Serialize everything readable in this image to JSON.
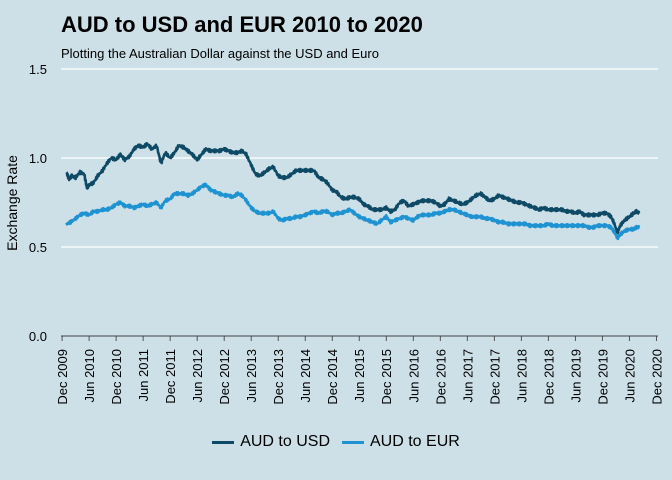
{
  "colors": {
    "background": "#cde0e8",
    "grid": "#ffffff",
    "usd": "#0e4965",
    "eur": "#1f93d1"
  },
  "chart_data": {
    "type": "line",
    "title": "AUD to USD and EUR 2010 to 2020",
    "subtitle": "Plotting the Australian Dollar against the USD and Euro",
    "xlabel": "",
    "ylabel": "Exchange Rate",
    "xlim": [
      2009.9,
      2020.95
    ],
    "ylim": [
      0,
      1.5
    ],
    "y_ticks": [
      {
        "value": 0.0,
        "label": "0.0"
      },
      {
        "value": 0.5,
        "label": "0.5"
      },
      {
        "value": 1.0,
        "label": "1.0"
      },
      {
        "value": 1.5,
        "label": "1.5"
      }
    ],
    "x_ticks": [
      {
        "value": 2009.92,
        "label": "Dec 2009"
      },
      {
        "value": 2010.42,
        "label": "Jun 2010"
      },
      {
        "value": 2010.92,
        "label": "Dec 2010"
      },
      {
        "value": 2011.42,
        "label": "Jun 2011"
      },
      {
        "value": 2011.92,
        "label": "Dec 2011"
      },
      {
        "value": 2012.42,
        "label": "Jun 2012"
      },
      {
        "value": 2012.92,
        "label": "Dec 2012"
      },
      {
        "value": 2013.42,
        "label": "Jun 2013"
      },
      {
        "value": 2013.92,
        "label": "Dec 2013"
      },
      {
        "value": 2014.42,
        "label": "Jun 2014"
      },
      {
        "value": 2014.92,
        "label": "Dec 2014"
      },
      {
        "value": 2015.42,
        "label": "Jun 2015"
      },
      {
        "value": 2015.92,
        "label": "Dec 2015"
      },
      {
        "value": 2016.42,
        "label": "Jun 2016"
      },
      {
        "value": 2016.92,
        "label": "Dec 2016"
      },
      {
        "value": 2017.42,
        "label": "Jun 2017"
      },
      {
        "value": 2017.92,
        "label": "Dec 2017"
      },
      {
        "value": 2018.42,
        "label": "Jun 2018"
      },
      {
        "value": 2018.92,
        "label": "Dec 2018"
      },
      {
        "value": 2019.42,
        "label": "Jun 2019"
      },
      {
        "value": 2019.92,
        "label": "Dec 2019"
      },
      {
        "value": 2020.42,
        "label": "Jun 2020"
      },
      {
        "value": 2020.92,
        "label": "Dec 2020"
      }
    ],
    "legend": {
      "position": "bottom"
    },
    "series": [
      {
        "name": "AUD to USD",
        "color": "#0e4965",
        "points": [
          [
            2010.0,
            0.92
          ],
          [
            2010.05,
            0.88
          ],
          [
            2010.1,
            0.9
          ],
          [
            2010.17,
            0.89
          ],
          [
            2010.25,
            0.92
          ],
          [
            2010.33,
            0.91
          ],
          [
            2010.38,
            0.83
          ],
          [
            2010.42,
            0.85
          ],
          [
            2010.5,
            0.86
          ],
          [
            2010.58,
            0.9
          ],
          [
            2010.67,
            0.93
          ],
          [
            2010.75,
            0.97
          ],
          [
            2010.83,
            1.0
          ],
          [
            2010.92,
            0.99
          ],
          [
            2011.0,
            1.02
          ],
          [
            2011.08,
            0.99
          ],
          [
            2011.17,
            1.01
          ],
          [
            2011.25,
            1.05
          ],
          [
            2011.33,
            1.07
          ],
          [
            2011.42,
            1.06
          ],
          [
            2011.5,
            1.08
          ],
          [
            2011.58,
            1.05
          ],
          [
            2011.67,
            1.07
          ],
          [
            2011.75,
            0.97
          ],
          [
            2011.83,
            1.03
          ],
          [
            2011.92,
            1.0
          ],
          [
            2012.0,
            1.03
          ],
          [
            2012.08,
            1.07
          ],
          [
            2012.17,
            1.06
          ],
          [
            2012.25,
            1.04
          ],
          [
            2012.33,
            1.02
          ],
          [
            2012.42,
            0.99
          ],
          [
            2012.5,
            1.02
          ],
          [
            2012.58,
            1.05
          ],
          [
            2012.67,
            1.04
          ],
          [
            2012.75,
            1.04
          ],
          [
            2012.83,
            1.04
          ],
          [
            2012.92,
            1.05
          ],
          [
            2013.0,
            1.04
          ],
          [
            2013.08,
            1.03
          ],
          [
            2013.17,
            1.03
          ],
          [
            2013.25,
            1.04
          ],
          [
            2013.33,
            1.02
          ],
          [
            2013.42,
            0.96
          ],
          [
            2013.5,
            0.91
          ],
          [
            2013.58,
            0.9
          ],
          [
            2013.67,
            0.92
          ],
          [
            2013.75,
            0.94
          ],
          [
            2013.83,
            0.95
          ],
          [
            2013.92,
            0.9
          ],
          [
            2014.0,
            0.89
          ],
          [
            2014.08,
            0.89
          ],
          [
            2014.17,
            0.91
          ],
          [
            2014.25,
            0.93
          ],
          [
            2014.33,
            0.93
          ],
          [
            2014.42,
            0.93
          ],
          [
            2014.5,
            0.93
          ],
          [
            2014.58,
            0.93
          ],
          [
            2014.67,
            0.89
          ],
          [
            2014.75,
            0.88
          ],
          [
            2014.83,
            0.86
          ],
          [
            2014.92,
            0.82
          ],
          [
            2015.0,
            0.81
          ],
          [
            2015.08,
            0.78
          ],
          [
            2015.17,
            0.77
          ],
          [
            2015.25,
            0.78
          ],
          [
            2015.33,
            0.78
          ],
          [
            2015.42,
            0.77
          ],
          [
            2015.5,
            0.74
          ],
          [
            2015.58,
            0.73
          ],
          [
            2015.67,
            0.71
          ],
          [
            2015.75,
            0.71
          ],
          [
            2015.83,
            0.71
          ],
          [
            2015.92,
            0.72
          ],
          [
            2016.0,
            0.7
          ],
          [
            2016.08,
            0.71
          ],
          [
            2016.17,
            0.75
          ],
          [
            2016.25,
            0.76
          ],
          [
            2016.33,
            0.73
          ],
          [
            2016.42,
            0.74
          ],
          [
            2016.5,
            0.75
          ],
          [
            2016.58,
            0.76
          ],
          [
            2016.67,
            0.76
          ],
          [
            2016.75,
            0.76
          ],
          [
            2016.83,
            0.75
          ],
          [
            2016.92,
            0.73
          ],
          [
            2017.0,
            0.74
          ],
          [
            2017.08,
            0.77
          ],
          [
            2017.17,
            0.76
          ],
          [
            2017.25,
            0.75
          ],
          [
            2017.33,
            0.74
          ],
          [
            2017.42,
            0.75
          ],
          [
            2017.5,
            0.77
          ],
          [
            2017.58,
            0.79
          ],
          [
            2017.67,
            0.8
          ],
          [
            2017.75,
            0.78
          ],
          [
            2017.83,
            0.76
          ],
          [
            2017.92,
            0.77
          ],
          [
            2018.0,
            0.79
          ],
          [
            2018.08,
            0.78
          ],
          [
            2018.17,
            0.77
          ],
          [
            2018.25,
            0.76
          ],
          [
            2018.33,
            0.75
          ],
          [
            2018.42,
            0.75
          ],
          [
            2018.5,
            0.74
          ],
          [
            2018.58,
            0.73
          ],
          [
            2018.67,
            0.72
          ],
          [
            2018.75,
            0.71
          ],
          [
            2018.83,
            0.72
          ],
          [
            2018.92,
            0.71
          ],
          [
            2019.0,
            0.71
          ],
          [
            2019.08,
            0.71
          ],
          [
            2019.17,
            0.71
          ],
          [
            2019.25,
            0.7
          ],
          [
            2019.33,
            0.7
          ],
          [
            2019.42,
            0.69
          ],
          [
            2019.5,
            0.7
          ],
          [
            2019.58,
            0.68
          ],
          [
            2019.67,
            0.68
          ],
          [
            2019.75,
            0.68
          ],
          [
            2019.83,
            0.68
          ],
          [
            2019.92,
            0.69
          ],
          [
            2020.0,
            0.69
          ],
          [
            2020.08,
            0.67
          ],
          [
            2020.13,
            0.64
          ],
          [
            2020.2,
            0.58
          ],
          [
            2020.25,
            0.62
          ],
          [
            2020.33,
            0.65
          ],
          [
            2020.42,
            0.67
          ],
          [
            2020.5,
            0.69
          ],
          [
            2020.55,
            0.7
          ],
          [
            2020.6,
            0.69
          ]
        ]
      },
      {
        "name": "AUD to EUR",
        "color": "#1f93d1",
        "points": [
          [
            2010.0,
            0.63
          ],
          [
            2010.08,
            0.64
          ],
          [
            2010.17,
            0.66
          ],
          [
            2010.25,
            0.68
          ],
          [
            2010.33,
            0.69
          ],
          [
            2010.42,
            0.68
          ],
          [
            2010.5,
            0.7
          ],
          [
            2010.58,
            0.7
          ],
          [
            2010.67,
            0.71
          ],
          [
            2010.75,
            0.71
          ],
          [
            2010.83,
            0.72
          ],
          [
            2010.92,
            0.74
          ],
          [
            2011.0,
            0.75
          ],
          [
            2011.08,
            0.73
          ],
          [
            2011.17,
            0.73
          ],
          [
            2011.25,
            0.72
          ],
          [
            2011.33,
            0.73
          ],
          [
            2011.42,
            0.74
          ],
          [
            2011.5,
            0.73
          ],
          [
            2011.58,
            0.74
          ],
          [
            2011.67,
            0.75
          ],
          [
            2011.75,
            0.72
          ],
          [
            2011.83,
            0.76
          ],
          [
            2011.92,
            0.77
          ],
          [
            2012.0,
            0.8
          ],
          [
            2012.08,
            0.8
          ],
          [
            2012.17,
            0.8
          ],
          [
            2012.25,
            0.79
          ],
          [
            2012.33,
            0.8
          ],
          [
            2012.42,
            0.82
          ],
          [
            2012.5,
            0.84
          ],
          [
            2012.58,
            0.85
          ],
          [
            2012.67,
            0.82
          ],
          [
            2012.75,
            0.81
          ],
          [
            2012.83,
            0.8
          ],
          [
            2012.92,
            0.79
          ],
          [
            2013.0,
            0.79
          ],
          [
            2013.08,
            0.78
          ],
          [
            2013.17,
            0.8
          ],
          [
            2013.25,
            0.79
          ],
          [
            2013.33,
            0.76
          ],
          [
            2013.42,
            0.72
          ],
          [
            2013.5,
            0.7
          ],
          [
            2013.58,
            0.69
          ],
          [
            2013.67,
            0.69
          ],
          [
            2013.75,
            0.69
          ],
          [
            2013.83,
            0.7
          ],
          [
            2013.92,
            0.66
          ],
          [
            2014.0,
            0.65
          ],
          [
            2014.08,
            0.66
          ],
          [
            2014.17,
            0.66
          ],
          [
            2014.25,
            0.67
          ],
          [
            2014.33,
            0.67
          ],
          [
            2014.42,
            0.68
          ],
          [
            2014.5,
            0.69
          ],
          [
            2014.58,
            0.7
          ],
          [
            2014.67,
            0.69
          ],
          [
            2014.75,
            0.7
          ],
          [
            2014.83,
            0.7
          ],
          [
            2014.92,
            0.68
          ],
          [
            2015.0,
            0.69
          ],
          [
            2015.08,
            0.69
          ],
          [
            2015.17,
            0.7
          ],
          [
            2015.25,
            0.71
          ],
          [
            2015.33,
            0.69
          ],
          [
            2015.42,
            0.67
          ],
          [
            2015.5,
            0.66
          ],
          [
            2015.58,
            0.65
          ],
          [
            2015.67,
            0.64
          ],
          [
            2015.75,
            0.63
          ],
          [
            2015.83,
            0.65
          ],
          [
            2015.92,
            0.67
          ],
          [
            2016.0,
            0.64
          ],
          [
            2016.08,
            0.65
          ],
          [
            2016.17,
            0.66
          ],
          [
            2016.25,
            0.67
          ],
          [
            2016.33,
            0.66
          ],
          [
            2016.42,
            0.65
          ],
          [
            2016.5,
            0.67
          ],
          [
            2016.58,
            0.68
          ],
          [
            2016.67,
            0.68
          ],
          [
            2016.75,
            0.68
          ],
          [
            2016.83,
            0.69
          ],
          [
            2016.92,
            0.69
          ],
          [
            2017.0,
            0.7
          ],
          [
            2017.08,
            0.71
          ],
          [
            2017.17,
            0.71
          ],
          [
            2017.25,
            0.7
          ],
          [
            2017.33,
            0.69
          ],
          [
            2017.42,
            0.68
          ],
          [
            2017.5,
            0.67
          ],
          [
            2017.58,
            0.67
          ],
          [
            2017.67,
            0.67
          ],
          [
            2017.75,
            0.66
          ],
          [
            2017.83,
            0.66
          ],
          [
            2017.92,
            0.65
          ],
          [
            2018.0,
            0.64
          ],
          [
            2018.08,
            0.64
          ],
          [
            2018.17,
            0.63
          ],
          [
            2018.25,
            0.63
          ],
          [
            2018.33,
            0.63
          ],
          [
            2018.42,
            0.63
          ],
          [
            2018.5,
            0.63
          ],
          [
            2018.58,
            0.62
          ],
          [
            2018.67,
            0.62
          ],
          [
            2018.75,
            0.62
          ],
          [
            2018.83,
            0.62
          ],
          [
            2018.92,
            0.63
          ],
          [
            2019.0,
            0.62
          ],
          [
            2019.08,
            0.62
          ],
          [
            2019.17,
            0.62
          ],
          [
            2019.25,
            0.62
          ],
          [
            2019.33,
            0.62
          ],
          [
            2019.42,
            0.62
          ],
          [
            2019.5,
            0.62
          ],
          [
            2019.58,
            0.62
          ],
          [
            2019.67,
            0.61
          ],
          [
            2019.75,
            0.61
          ],
          [
            2019.83,
            0.62
          ],
          [
            2019.92,
            0.62
          ],
          [
            2020.0,
            0.62
          ],
          [
            2020.08,
            0.61
          ],
          [
            2020.13,
            0.59
          ],
          [
            2020.2,
            0.55
          ],
          [
            2020.25,
            0.57
          ],
          [
            2020.33,
            0.59
          ],
          [
            2020.42,
            0.6
          ],
          [
            2020.5,
            0.6
          ],
          [
            2020.55,
            0.61
          ],
          [
            2020.6,
            0.61
          ]
        ]
      }
    ]
  }
}
